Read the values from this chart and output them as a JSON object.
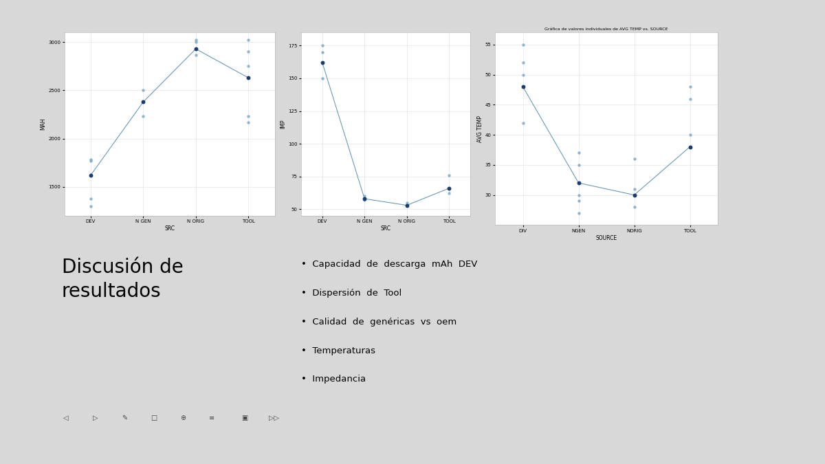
{
  "background_color": "#d8d8d8",
  "slide_bg": "#ffffff",
  "panel_bg": "#e8e8e8",
  "yellow_rect_color": "#E8B800",
  "divider_color": "#E8B800",
  "chart1": {
    "title": "",
    "xlabel": "SRC",
    "ylabel": "MAH",
    "categories": [
      "DEV",
      "N GEN",
      "N ORIG",
      "TOOL"
    ],
    "mean_values": [
      1620,
      2380,
      2930,
      2630
    ],
    "scatter_points": {
      "DEV": [
        1780,
        1770,
        1380,
        1300
      ],
      "N GEN": [
        2500,
        2230
      ],
      "N ORIG": [
        3020,
        3000,
        2870
      ],
      "TOOL": [
        3020,
        2900,
        2750,
        2230,
        2170
      ]
    },
    "ylim": [
      1200,
      3100
    ],
    "yticks": [
      1500,
      2000,
      2500,
      3000
    ]
  },
  "chart2": {
    "title": "",
    "xlabel": "SRC",
    "ylabel": "IMP",
    "categories": [
      "DEV",
      "N GEN",
      "N ORIG",
      "TOOL"
    ],
    "mean_values": [
      162,
      58,
      53,
      66
    ],
    "scatter_points": {
      "DEV": [
        175,
        170,
        150
      ],
      "N GEN": [
        60,
        57
      ],
      "N ORIG": [
        55,
        53
      ],
      "TOOL": [
        76,
        62
      ]
    },
    "ylim": [
      45,
      185
    ],
    "yticks": [
      50,
      75,
      100,
      125,
      150,
      175
    ]
  },
  "chart3": {
    "title": "Gráfica de valores individuales de AVG TEMP vs. SOURCE",
    "xlabel": "SOURCE",
    "ylabel": "AVG TEMP",
    "categories": [
      "DIV",
      "NGEN",
      "NORIG",
      "TOOL"
    ],
    "mean_values": [
      48,
      32,
      30,
      38
    ],
    "scatter_points": {
      "DIV": [
        55,
        52,
        50,
        42
      ],
      "NGEN": [
        37,
        35,
        30,
        29,
        27
      ],
      "NORIG": [
        36,
        31,
        28
      ],
      "TOOL": [
        48,
        46,
        40,
        38
      ]
    },
    "ylim": [
      25,
      57
    ],
    "yticks": [
      30,
      35,
      40,
      45,
      50,
      55
    ]
  },
  "title_line1": "Discusión de",
  "title_line2": "resultados",
  "bullet_points": [
    "Capacidad  de  descarga  mAh  DEV",
    "Dispersión  de  Tool",
    "Calidad  de  genéricas  vs  oem",
    "Temperaturas",
    "Impedancia"
  ],
  "line_color": "#5a8faf",
  "scatter_color": "#7aaac8",
  "mean_dot_color": "#1a3d6e",
  "grid_color": "#e0e0e0",
  "nav_bg": "#c8c8c8"
}
